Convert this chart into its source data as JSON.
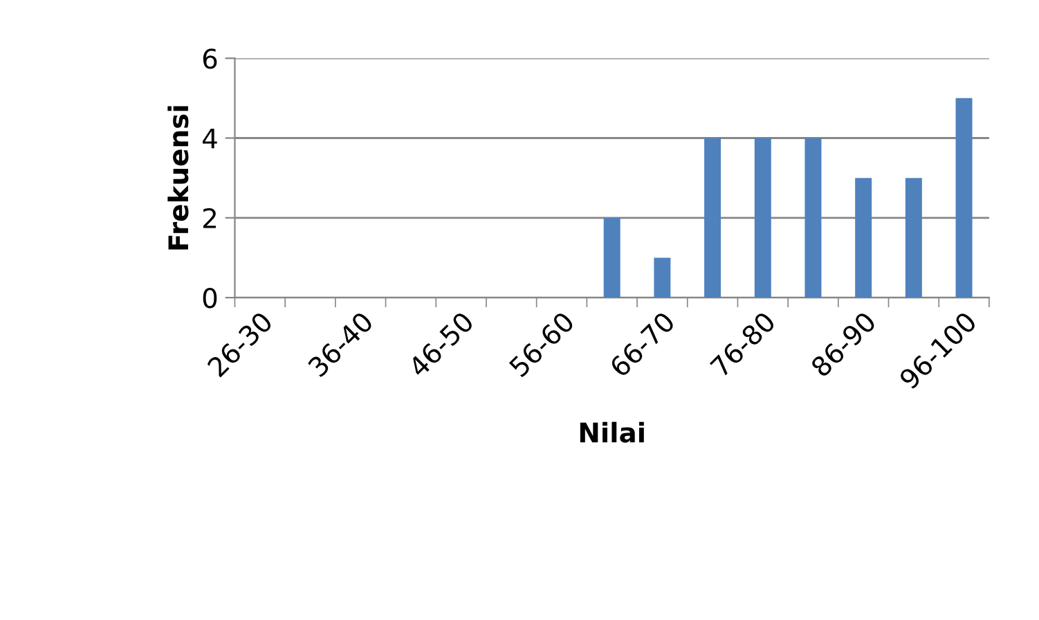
{
  "chart_data": {
    "type": "bar",
    "xlabel": "Nilai",
    "ylabel": "Frekuensi",
    "categories": [
      "26-30",
      null,
      "36-40",
      null,
      "46-50",
      null,
      "56-60",
      null,
      "66-70",
      null,
      "76-80",
      null,
      "86-90",
      null,
      "96-100"
    ],
    "values": [
      0,
      0,
      0,
      0,
      0,
      0,
      0,
      2,
      1,
      4,
      4,
      4,
      3,
      3,
      5
    ],
    "color": "#4f81bd",
    "ylim": [
      0,
      6
    ],
    "yticks": [
      0,
      2,
      4,
      6
    ],
    "grid": "y",
    "legend": false
  }
}
